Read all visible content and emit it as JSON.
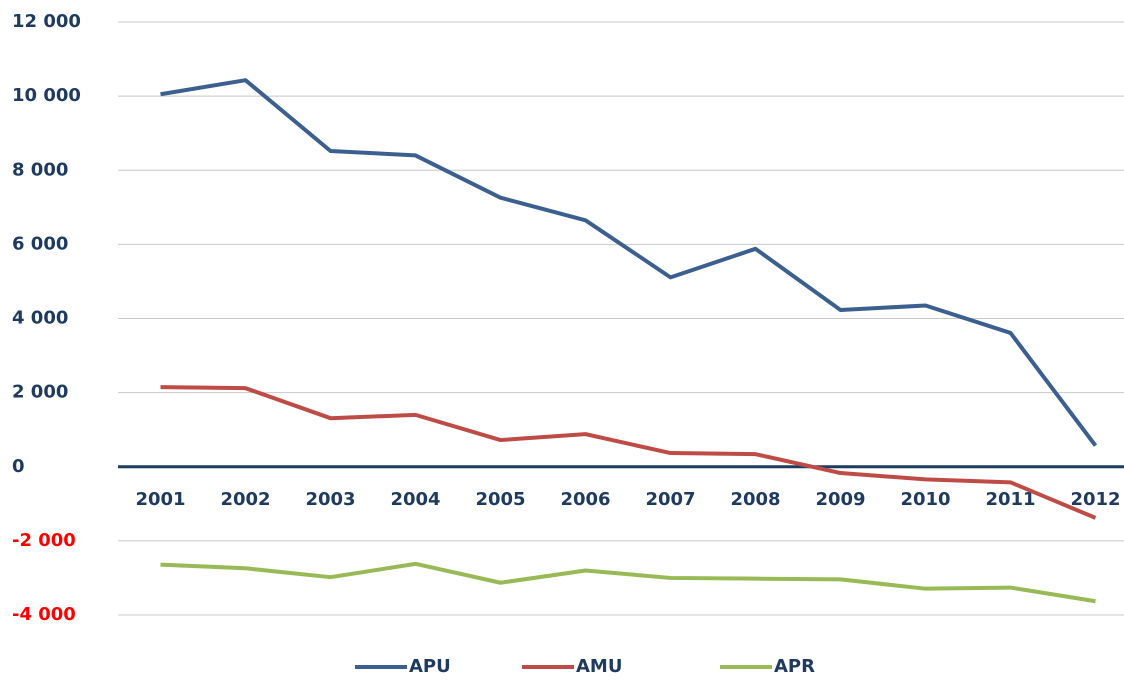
{
  "chart_data": {
    "type": "line",
    "categories": [
      "2001",
      "2002",
      "2003",
      "2004",
      "2005",
      "2006",
      "2007",
      "2008",
      "2009",
      "2010",
      "2011",
      "2012"
    ],
    "series": [
      {
        "name": "APU",
        "color": "#3b5f8f",
        "values": [
          10050,
          10430,
          8520,
          8400,
          7260,
          6650,
          5110,
          5880,
          4230,
          4350,
          3610,
          570
        ]
      },
      {
        "name": "AMU",
        "color": "#bf4b47",
        "values": [
          2150,
          2120,
          1310,
          1400,
          720,
          880,
          370,
          340,
          -170,
          -340,
          -420,
          -1380
        ]
      },
      {
        "name": "APR",
        "color": "#98b956",
        "values": [
          -2640,
          -2740,
          -2980,
          -2620,
          -3130,
          -2800,
          -3000,
          -3020,
          -3040,
          -3290,
          -3260,
          -3630
        ]
      }
    ],
    "ylim": [
      -4000,
      12000
    ],
    "yticks": [
      {
        "value": -4000,
        "label": "-4 000"
      },
      {
        "value": -2000,
        "label": "-2 000"
      },
      0,
      {
        "value": 2000,
        "label": "2 000"
      },
      {
        "value": 4000,
        "label": "4 000"
      },
      {
        "value": 6000,
        "label": "6 000"
      },
      {
        "value": 8000,
        "label": "8 000"
      },
      {
        "value": 10000,
        "label": "10 000"
      },
      {
        "value": 12000,
        "label": "12 000"
      }
    ],
    "grid": true,
    "legend": "bottom",
    "tick_color": "#1f3a5f",
    "negative_tick_color": "#ff0000",
    "zero_line_color": "#1f3a5f"
  }
}
